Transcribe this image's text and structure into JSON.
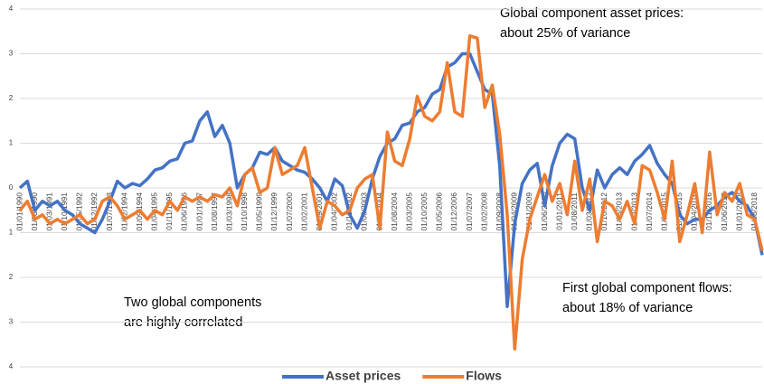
{
  "chart_data": {
    "type": "line",
    "annotations": [
      [
        "Global component asset prices:",
        "about 25% of variance"
      ],
      [
        "Two global components",
        "are highly correlated"
      ],
      [
        "First global component flows:",
        "about 18% of variance"
      ]
    ],
    "categories": [
      "01/01/1990",
      null,
      "01/08/1990",
      null,
      "01/03/1991",
      null,
      "01/10/1991",
      null,
      "01/05/1992",
      null,
      "01/12/1992",
      null,
      "01/07/1993",
      null,
      "01/02/1994",
      null,
      "01/09/1994",
      null,
      "01/04/1995",
      null,
      "01/11/1995",
      null,
      "01/06/1996",
      null,
      "01/01/1997",
      null,
      "01/08/1997",
      null,
      "01/03/1998",
      null,
      "01/10/1998",
      null,
      "01/05/1999",
      null,
      "01/12/1999",
      null,
      "01/07/2000",
      null,
      "01/02/2001",
      null,
      "01/09/2001",
      null,
      "01/04/2002",
      null,
      "01/11/2002",
      null,
      "01/06/2003",
      null,
      "01/01/2004",
      null,
      "01/08/2004",
      null,
      "01/03/2005",
      null,
      "01/10/2005",
      null,
      "01/05/2006",
      null,
      "01/12/2006",
      null,
      "01/07/2007",
      null,
      "01/02/2008",
      null,
      "01/09/2008",
      null,
      "01/04/2009",
      null,
      "01/11/2009",
      null,
      "01/06/2010",
      null,
      "01/01/2011",
      null,
      "01/08/2011",
      null,
      "01/03/2012",
      null,
      "01/10/2012",
      null,
      "01/05/2013",
      null,
      "01/12/2013",
      null,
      "01/07/2014",
      null,
      "01/02/2015",
      null,
      "01/09/2015",
      null,
      "01/04/2016",
      null,
      "01/11/2016",
      null,
      "01/06/2017",
      null,
      "01/01/2018",
      null,
      "01/08/2018",
      null
    ],
    "series": [
      {
        "name": "Asset prices",
        "color": "#4472c4",
        "values": [
          0.0,
          0.15,
          -0.5,
          -0.3,
          -0.4,
          -0.3,
          -0.5,
          -0.6,
          -0.8,
          -0.9,
          -1.0,
          -0.7,
          -0.3,
          0.15,
          0.0,
          0.1,
          0.05,
          0.2,
          0.4,
          0.45,
          0.6,
          0.65,
          1.0,
          1.05,
          1.5,
          1.7,
          1.15,
          1.4,
          1.0,
          0.0,
          0.3,
          0.45,
          0.8,
          0.75,
          0.9,
          0.6,
          0.5,
          0.4,
          0.35,
          0.2,
          0.0,
          -0.3,
          0.2,
          0.05,
          -0.6,
          -0.9,
          -0.5,
          0.2,
          0.7,
          1.0,
          1.1,
          1.4,
          1.45,
          1.7,
          1.8,
          2.1,
          2.2,
          2.7,
          2.8,
          3.0,
          3.0,
          2.6,
          2.2,
          2.1,
          0.5,
          -2.65,
          -0.8,
          0.1,
          0.4,
          0.55,
          -0.4,
          0.5,
          1.0,
          1.2,
          1.1,
          0.0,
          -0.5,
          0.4,
          0.0,
          0.3,
          0.45,
          0.3,
          0.6,
          0.75,
          0.95,
          0.55,
          0.3,
          0.1,
          -0.6,
          -0.8,
          -0.7,
          -0.7,
          -0.5,
          -0.4,
          -0.2,
          -0.1,
          -0.3,
          -0.4,
          -0.7,
          -1.5
        ]
      },
      {
        "name": "Flows",
        "color": "#ed7d31",
        "values": [
          -0.5,
          -0.3,
          -0.7,
          -0.6,
          -0.8,
          -0.7,
          -0.8,
          -0.7,
          -0.6,
          -0.8,
          -0.7,
          -0.3,
          -0.2,
          -0.4,
          -0.7,
          -0.6,
          -0.5,
          -0.7,
          -0.5,
          -0.6,
          -0.3,
          -0.5,
          -0.2,
          -0.3,
          -0.2,
          -0.3,
          -0.15,
          -0.2,
          0.0,
          -0.4,
          0.3,
          0.45,
          -0.1,
          0.0,
          0.9,
          0.3,
          0.4,
          0.5,
          0.9,
          0.0,
          -0.9,
          -0.3,
          -0.4,
          -0.6,
          -0.5,
          0.0,
          0.2,
          0.3,
          -0.9,
          1.25,
          0.6,
          0.5,
          1.1,
          2.05,
          1.6,
          1.5,
          1.7,
          2.8,
          1.7,
          1.6,
          3.4,
          3.35,
          1.8,
          2.3,
          1.2,
          -0.6,
          -3.6,
          -1.6,
          -0.7,
          -0.2,
          0.3,
          -0.3,
          0.1,
          -0.6,
          0.6,
          -0.5,
          0.2,
          -1.2,
          -0.3,
          -0.4,
          -0.7,
          -0.3,
          -0.8,
          0.5,
          0.4,
          -0.1,
          -0.7,
          0.6,
          -1.2,
          -0.6,
          0.1,
          -1.0,
          0.8,
          -0.6,
          -0.1,
          -0.3,
          0.1,
          -0.6,
          -0.7,
          -1.4
        ]
      }
    ],
    "ylim": [
      -4,
      4
    ],
    "yticks": [
      4,
      3,
      2,
      1,
      0,
      {
        "value": -1,
        "label": "1"
      },
      {
        "value": -2,
        "label": "2"
      },
      {
        "value": -3,
        "label": "3"
      },
      {
        "value": -4,
        "label": "4"
      }
    ],
    "grid": true,
    "legend": "bottom"
  }
}
